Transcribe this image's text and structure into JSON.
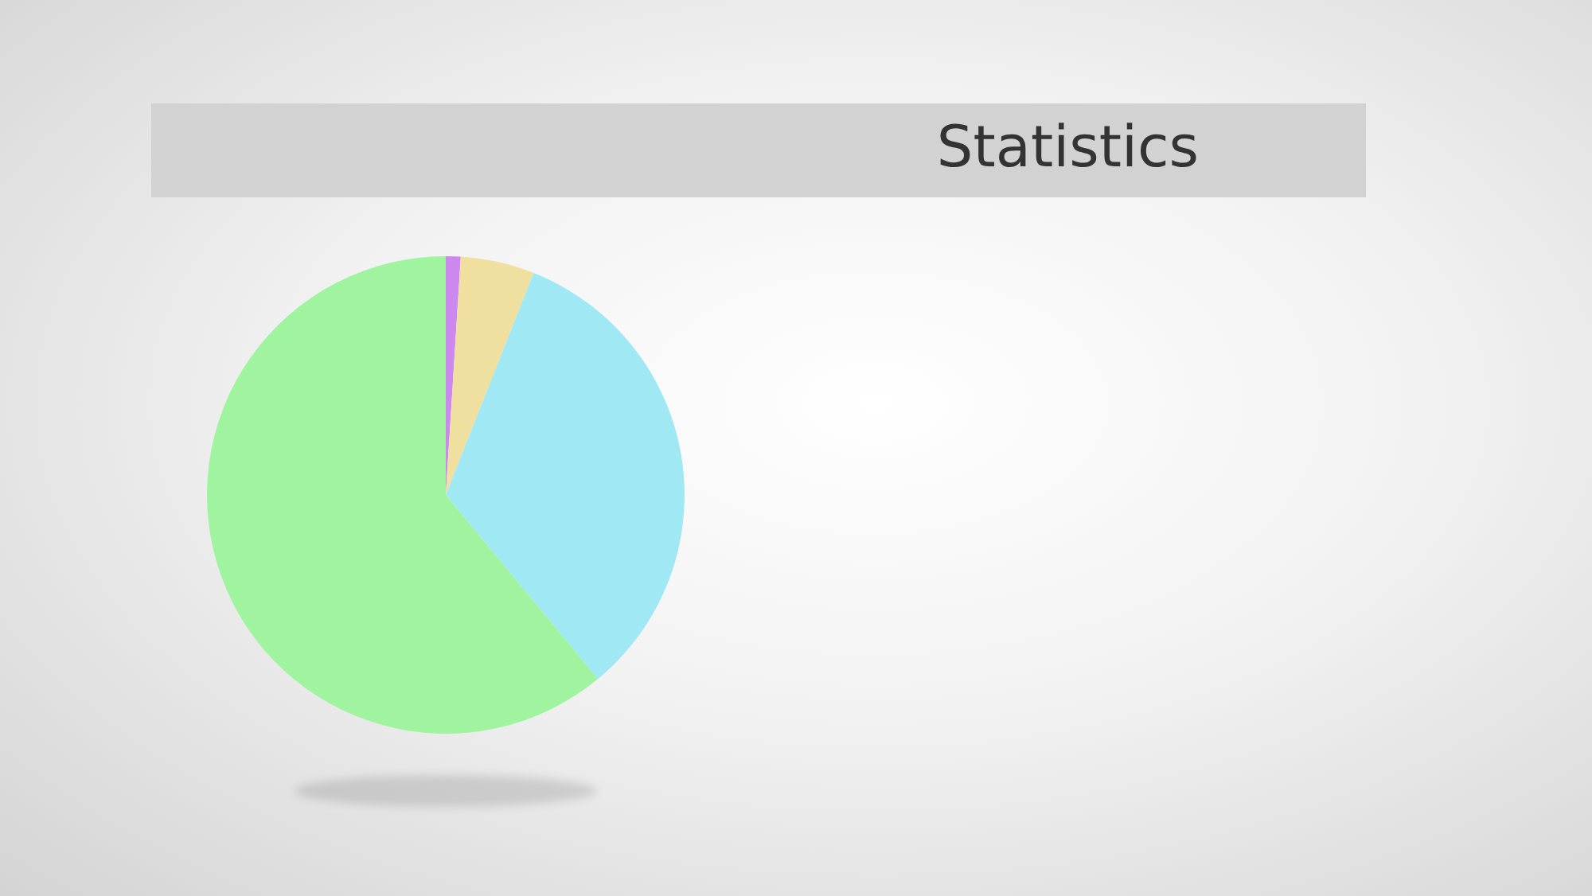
{
  "chart_data": {
    "type": "pie",
    "title": "Statistics",
    "categories": [
      null,
      null,
      null,
      null
    ],
    "values": [
      1,
      5,
      33,
      61
    ],
    "colors": [
      "#cc88ee",
      "#f0e0a0",
      "#a0e8f4",
      "#a0f4a0"
    ]
  }
}
